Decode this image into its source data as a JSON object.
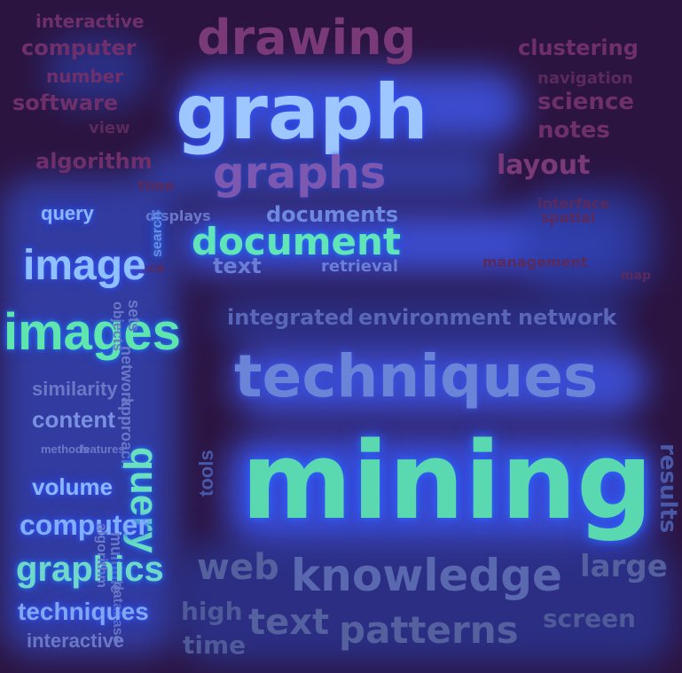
{
  "cloud": {
    "words": {
      "interactive_top": "interactive",
      "computer_top": "computer",
      "number": "number",
      "software": "software",
      "view": "view",
      "algorithm_top": "algorithm",
      "time_top": "time",
      "drawing": "drawing",
      "graph": "graph",
      "graphs": "graphs",
      "clustering": "clustering",
      "navigation": "navigation",
      "science": "science",
      "notes": "notes",
      "layout": "layout",
      "interface": "interface",
      "spatial": "spatial",
      "query_top": "query",
      "displays": "displays",
      "documents": "documents",
      "document": "document",
      "text_mid": "text",
      "retrieval": "retrieval",
      "management": "management",
      "image": "image",
      "search": "search",
      "images": "images",
      "objects": "objects",
      "sets": "sets",
      "integrated": "integrated",
      "environment": "environment",
      "network_top": "network",
      "network_side": "network",
      "techniques_big": "techniques",
      "similarity": "similarity",
      "content": "content",
      "approach": "approach",
      "methods": "methods",
      "features": "features",
      "mining": "mining",
      "query_big": "query",
      "tools": "tools",
      "results": "results",
      "volume": "volume",
      "computer_side": "computer",
      "graphics": "graphics",
      "techniques_side": "techniques",
      "interactive_side": "interactive",
      "multiple": "multiple",
      "database": "database",
      "algorithm_side": "algorithm",
      "web": "web",
      "knowledge": "knowledge",
      "large": "large",
      "high": "high",
      "text_bottom": "text",
      "patterns": "patterns",
      "screen": "screen",
      "time_bottom": "time",
      "space": "space",
      "map": "map"
    }
  }
}
